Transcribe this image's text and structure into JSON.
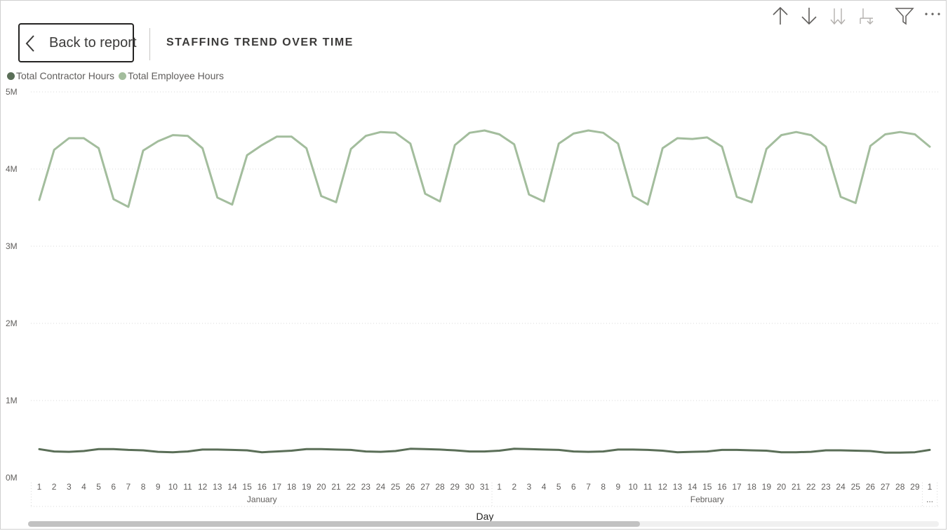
{
  "header": {
    "back_label": "Back to report",
    "title": "STAFFING TREND OVER TIME"
  },
  "toolbar": {
    "icons": [
      "arrow-up-icon",
      "arrow-down-icon",
      "double-arrow-down-icon",
      "expand-hierarchy-icon",
      "filter-icon",
      "more-options-icon"
    ]
  },
  "colors": {
    "contractor": "#5a6e57",
    "employee": "#a3bd9d",
    "grid": "#d9d9d9",
    "axis_text": "#605e5c"
  },
  "chart_data": {
    "type": "line",
    "xlabel": "Day",
    "ylabel": "",
    "ylim": [
      0,
      5000000
    ],
    "y_ticks": [
      "0M",
      "1M",
      "2M",
      "3M",
      "4M",
      "5M"
    ],
    "grid": true,
    "legend_position": "top-left",
    "months": [
      {
        "name": "January",
        "days": [
          "1",
          "2",
          "3",
          "4",
          "5",
          "6",
          "7",
          "8",
          "9",
          "10",
          "11",
          "12",
          "13",
          "14",
          "15",
          "16",
          "17",
          "18",
          "19",
          "20",
          "21",
          "22",
          "23",
          "24",
          "25",
          "26",
          "27",
          "28",
          "29",
          "30",
          "31"
        ]
      },
      {
        "name": "February",
        "days": [
          "1",
          "2",
          "3",
          "4",
          "5",
          "6",
          "7",
          "8",
          "9",
          "10",
          "11",
          "12",
          "13",
          "14",
          "15",
          "16",
          "17",
          "18",
          "19",
          "20",
          "21",
          "22",
          "23",
          "24",
          "25",
          "26",
          "27",
          "28",
          "29"
        ]
      },
      {
        "name": "...",
        "days": [
          "1"
        ]
      }
    ],
    "series": [
      {
        "name": "Total Contractor Hours",
        "values": [
          370000,
          340000,
          335000,
          345000,
          370000,
          370000,
          360000,
          355000,
          335000,
          330000,
          340000,
          365000,
          365000,
          360000,
          355000,
          330000,
          340000,
          350000,
          370000,
          370000,
          365000,
          360000,
          340000,
          335000,
          345000,
          375000,
          370000,
          365000,
          355000,
          340000,
          340000,
          350000,
          375000,
          370000,
          365000,
          360000,
          340000,
          335000,
          340000,
          365000,
          365000,
          360000,
          350000,
          330000,
          335000,
          340000,
          360000,
          360000,
          355000,
          350000,
          330000,
          330000,
          335000,
          355000,
          355000,
          350000,
          345000,
          325000,
          325000,
          330000,
          360000
        ]
      },
      {
        "name": "Total Employee Hours",
        "values": [
          3600000,
          4250000,
          4400000,
          4400000,
          4270000,
          3610000,
          3510000,
          4240000,
          4360000,
          4440000,
          4430000,
          4270000,
          3630000,
          3540000,
          4180000,
          4310000,
          4420000,
          4420000,
          4270000,
          3650000,
          3570000,
          4260000,
          4430000,
          4480000,
          4470000,
          4330000,
          3680000,
          3580000,
          4310000,
          4470000,
          4500000,
          4450000,
          4320000,
          3670000,
          3580000,
          4330000,
          4460000,
          4500000,
          4470000,
          4330000,
          3650000,
          3540000,
          4270000,
          4400000,
          4390000,
          4410000,
          4290000,
          3640000,
          3570000,
          4260000,
          4440000,
          4480000,
          4440000,
          4290000,
          3640000,
          3560000,
          4300000,
          4450000,
          4480000,
          4450000,
          4290000
        ]
      }
    ]
  }
}
